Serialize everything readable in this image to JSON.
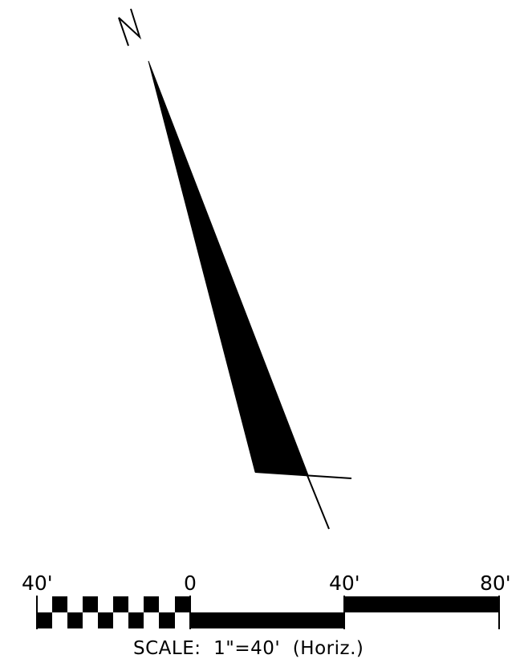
{
  "north_arrow": {
    "letter": "N",
    "fill_color": "#000000"
  },
  "scale_bar": {
    "tick_labels": [
      "40'",
      "0",
      "40'",
      "80'"
    ],
    "caption": "SCALE:  1\"=40'  (Horiz.)",
    "bar_color": "#000000"
  }
}
